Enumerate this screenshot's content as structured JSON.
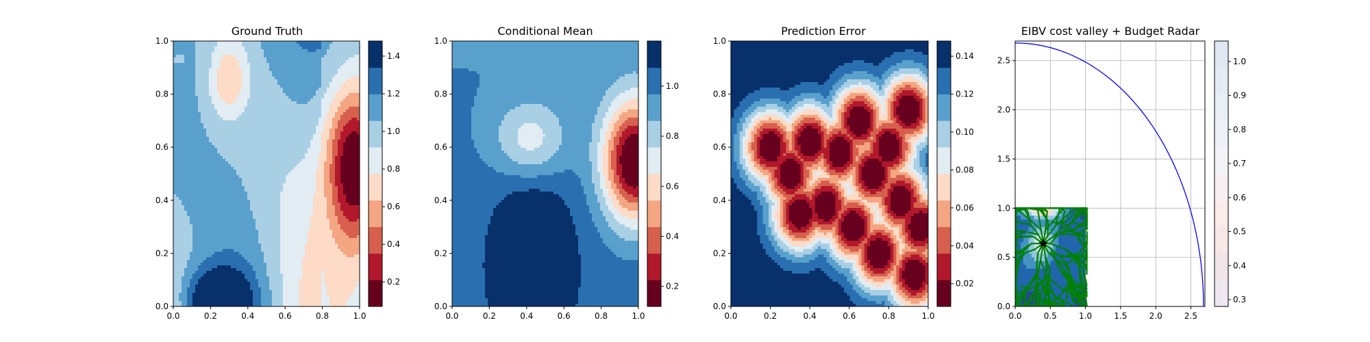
{
  "figure": {
    "title": ""
  },
  "chart_data": [
    {
      "type": "heatmap",
      "title": "Ground Truth",
      "xlabel": "",
      "ylabel": "",
      "xlim": [
        0,
        1
      ],
      "ylim": [
        0,
        1
      ],
      "xticks": [
        "0.0",
        "0.2",
        "0.4",
        "0.6",
        "0.8",
        "1.0"
      ],
      "yticks": [
        "0.0",
        "0.2",
        "0.4",
        "0.6",
        "0.8",
        "1.0"
      ],
      "colormap": "RdBu",
      "colorbar": {
        "min": 0.07,
        "max": 1.48,
        "ticks": [
          "0.2",
          "0.4",
          "0.6",
          "0.8",
          "1.0",
          "1.2",
          "1.4"
        ],
        "levels": 10
      },
      "features": [
        {
          "x": 0.97,
          "y": 0.52,
          "value": 0.02,
          "sx": 0.11,
          "sy": 0.22
        },
        {
          "x": 0.23,
          "y": 0.02,
          "value": 1.55,
          "sx": 0.12,
          "sy": 0.09
        },
        {
          "x": 0.3,
          "y": 0.85,
          "value": 0.6,
          "sx": 0.07,
          "sy": 0.1
        },
        {
          "x": 0.03,
          "y": 0.93,
          "value": 1.05,
          "sx": 0.08,
          "sy": 0.05
        }
      ],
      "grid": false
    },
    {
      "type": "heatmap",
      "title": "Conditional Mean",
      "xlabel": "",
      "ylabel": "",
      "xlim": [
        0,
        1
      ],
      "ylim": [
        0,
        1
      ],
      "xticks": [
        "0.0",
        "0.2",
        "0.4",
        "0.6",
        "0.8",
        "1.0"
      ],
      "yticks": [
        "0.0",
        "0.2",
        "0.4",
        "0.6",
        "0.8",
        "1.0"
      ],
      "colormap": "RdBu",
      "colorbar": {
        "min": 0.12,
        "max": 1.18,
        "ticks": [
          "0.2",
          "0.4",
          "0.6",
          "0.8",
          "1.0"
        ],
        "levels": 10
      },
      "features": [
        {
          "x": 0.98,
          "y": 0.55,
          "value": 0.05,
          "sx": 0.12,
          "sy": 0.16
        },
        {
          "x": 0.43,
          "y": 0.2,
          "value": 1.3,
          "sx": 0.14,
          "sy": 0.18
        },
        {
          "x": 0.42,
          "y": 0.64,
          "value": 0.72,
          "sx": 0.14,
          "sy": 0.1
        }
      ],
      "grid": false
    },
    {
      "type": "heatmap",
      "title": "Prediction Error",
      "xlabel": "",
      "ylabel": "",
      "xlim": [
        0,
        1
      ],
      "ylim": [
        0,
        1
      ],
      "xticks": [
        "0.0",
        "0.2",
        "0.4",
        "0.6",
        "0.8",
        "1.0"
      ],
      "yticks": [
        "0.0",
        "0.2",
        "0.4",
        "0.6",
        "0.8",
        "1.0"
      ],
      "colormap": "RdBu",
      "colorbar": {
        "min": 0.008,
        "max": 0.148,
        "ticks": [
          "0.02",
          "0.04",
          "0.06",
          "0.08",
          "0.10",
          "0.12",
          "0.14"
        ],
        "levels": 10
      },
      "samples": [
        {
          "x": 0.2,
          "y": 0.6
        },
        {
          "x": 0.3,
          "y": 0.5
        },
        {
          "x": 0.4,
          "y": 0.62
        },
        {
          "x": 0.48,
          "y": 0.38
        },
        {
          "x": 0.55,
          "y": 0.58
        },
        {
          "x": 0.62,
          "y": 0.3
        },
        {
          "x": 0.72,
          "y": 0.5
        },
        {
          "x": 0.65,
          "y": 0.7
        },
        {
          "x": 0.8,
          "y": 0.6
        },
        {
          "x": 0.9,
          "y": 0.74
        },
        {
          "x": 0.86,
          "y": 0.4
        },
        {
          "x": 0.93,
          "y": 0.12
        },
        {
          "x": 0.96,
          "y": 0.3
        },
        {
          "x": 0.75,
          "y": 0.2
        },
        {
          "x": 0.35,
          "y": 0.35
        }
      ],
      "grid": false
    },
    {
      "type": "heatmap",
      "title": "EIBV cost valley + Budget Radar",
      "xlabel": "",
      "ylabel": "",
      "xlim": [
        0,
        2.7
      ],
      "ylim": [
        0,
        2.7
      ],
      "xticks": [
        "0.0",
        "0.5",
        "1.0",
        "1.5",
        "2.0",
        "2.5"
      ],
      "yticks": [
        "0.0",
        "0.5",
        "1.0",
        "1.5",
        "2.0",
        "2.5"
      ],
      "colormap": "RdBu",
      "colorbar": {
        "min": 0.28,
        "max": 1.06,
        "ticks": [
          "0.3",
          "0.4",
          "0.5",
          "0.6",
          "0.7",
          "0.8",
          "0.9",
          "1.0"
        ],
        "levels": 10
      },
      "budget_radar": {
        "center": [
          0,
          0
        ],
        "radius": 2.68,
        "color": "#0000ff"
      },
      "cost_valley_region": {
        "x": [
          0,
          1
        ],
        "y": [
          0,
          1
        ]
      },
      "current_location": {
        "x": 0.4,
        "y": 0.64
      },
      "candidate_paths_color": "#008000",
      "grid": true
    }
  ]
}
